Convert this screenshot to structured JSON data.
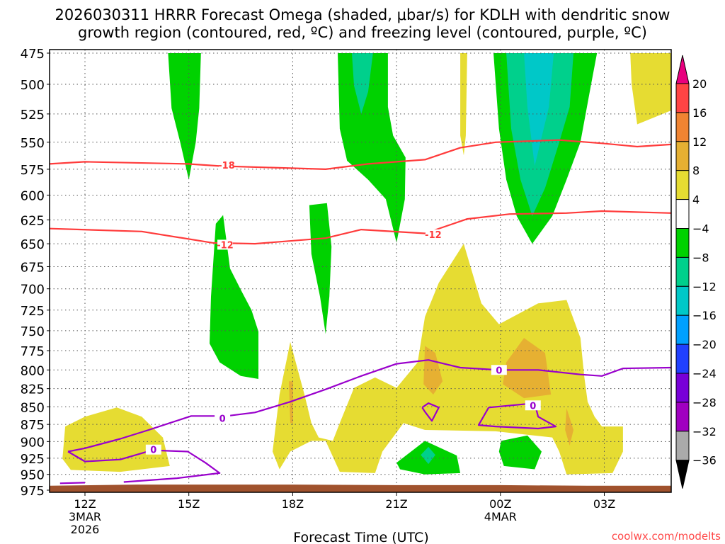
{
  "chart_data": {
    "type": "contour",
    "title_lines": [
      "2026030311 HRRR Forecast Omega (shaded, μbar/s) for KDLH with dendritic snow",
      "growth region (contoured, red, ºC) and freezing level (contoured, purple, ºC)"
    ],
    "xlabel": "Forecast Time (UTC)",
    "credit": "coolwx.com/modelts",
    "x_units": "hours since 12Z 3 Mar 2026",
    "xlim": [
      -1.0,
      17.0
    ],
    "ylim_hPa": [
      475,
      975
    ],
    "y_scale": "log, inverted",
    "grid": "dotted",
    "x_ticks": [
      {
        "h": 0,
        "lines": [
          "12Z",
          "3MAR",
          "2026"
        ]
      },
      {
        "h": 3,
        "lines": [
          "15Z"
        ]
      },
      {
        "h": 6,
        "lines": [
          "18Z"
        ]
      },
      {
        "h": 9,
        "lines": [
          "21Z"
        ]
      },
      {
        "h": 12,
        "lines": [
          "00Z",
          "4MAR"
        ]
      },
      {
        "h": 15,
        "lines": [
          "03Z"
        ]
      }
    ],
    "y_ticks": [
      475,
      500,
      525,
      550,
      575,
      600,
      625,
      650,
      675,
      700,
      725,
      750,
      775,
      800,
      825,
      850,
      875,
      900,
      925,
      950,
      975
    ],
    "colorbar": {
      "labels": [
        "20",
        "16",
        "12",
        "8",
        "4",
        "−4",
        "−8",
        "−12",
        "−16",
        "−20",
        "−24",
        "−28",
        "−32",
        "−36"
      ],
      "colors": [
        "#ff4444",
        "#f08432",
        "#e6b032",
        "#e6dc32",
        "#ffffff",
        "#00d200",
        "#00d08c",
        "#00c8c8",
        "#00a0ff",
        "#2040ff",
        "#7800d8",
        "#a000c0",
        "#aaaaaa"
      ],
      "over_color": "#e8007e",
      "under_color": "#000000"
    },
    "shaded": [
      {
        "level": "-4 to -8",
        "color": "#00d200",
        "points": [
          [
            2.4,
            475
          ],
          [
            3.35,
            475
          ],
          [
            3.3,
            520
          ],
          [
            3.2,
            550
          ],
          [
            3.0,
            585
          ],
          [
            2.75,
            550
          ],
          [
            2.5,
            520
          ]
        ]
      },
      {
        "level": "-4 to -8",
        "color": "#00d200",
        "points": [
          [
            3.78,
            629
          ],
          [
            3.99,
            620
          ],
          [
            4.19,
            677
          ],
          [
            4.5,
            701
          ],
          [
            4.81,
            725
          ],
          [
            5.01,
            751
          ],
          [
            5.01,
            812
          ],
          [
            4.5,
            808
          ],
          [
            3.89,
            790
          ],
          [
            3.6,
            766
          ],
          [
            3.64,
            709
          ]
        ]
      },
      {
        "level": "-4 to -8",
        "color": "#00d200",
        "points": [
          [
            6.48,
            610
          ],
          [
            6.99,
            608
          ],
          [
            7.12,
            653
          ],
          [
            7.06,
            709
          ],
          [
            6.95,
            754
          ],
          [
            6.79,
            709
          ],
          [
            6.54,
            661
          ]
        ]
      },
      {
        "level": "-4 to -8",
        "color": "#00d200",
        "points": [
          [
            7.3,
            475
          ],
          [
            8.75,
            475
          ],
          [
            8.75,
            519
          ],
          [
            8.9,
            544
          ],
          [
            9.26,
            564
          ],
          [
            9.24,
            604
          ],
          [
            9.0,
            649
          ],
          [
            8.69,
            604
          ],
          [
            8.18,
            585
          ],
          [
            7.57,
            567
          ],
          [
            7.36,
            538
          ]
        ]
      },
      {
        "level": "-8 to -12",
        "color": "#00d08c",
        "points": [
          [
            7.71,
            475
          ],
          [
            8.32,
            475
          ],
          [
            8.18,
            506
          ],
          [
            7.98,
            525
          ],
          [
            7.77,
            501
          ]
        ]
      },
      {
        "level": "-4 to -8",
        "color": "#00d200",
        "points": [
          [
            11.8,
            475
          ],
          [
            14.79,
            475
          ],
          [
            14.62,
            500
          ],
          [
            14.31,
            550
          ],
          [
            13.91,
            585
          ],
          [
            13.5,
            621
          ],
          [
            12.92,
            650
          ],
          [
            12.47,
            621
          ],
          [
            12.17,
            585
          ],
          [
            11.96,
            538
          ]
        ]
      },
      {
        "level": "-8 to -12",
        "color": "#00d08c",
        "points": [
          [
            12.17,
            475
          ],
          [
            14.11,
            475
          ],
          [
            14.0,
            519
          ],
          [
            13.7,
            550
          ],
          [
            13.29,
            593
          ],
          [
            12.92,
            621
          ],
          [
            12.58,
            585
          ],
          [
            12.31,
            538
          ]
        ]
      },
      {
        "level": "-12 to -16",
        "color": "#00c8c8",
        "points": [
          [
            12.68,
            475
          ],
          [
            13.54,
            475
          ],
          [
            13.4,
            519
          ],
          [
            12.99,
            572
          ],
          [
            12.78,
            519
          ]
        ]
      },
      {
        "level": "-4 to -8",
        "color": "#00d200",
        "points": [
          [
            9.0,
            932
          ],
          [
            9.82,
            899
          ],
          [
            10.74,
            921
          ],
          [
            10.84,
            948
          ],
          [
            9.82,
            950
          ],
          [
            9.1,
            942
          ]
        ]
      },
      {
        "level": "-8 to -12",
        "color": "#00d08c",
        "points": [
          [
            9.7,
            920
          ],
          [
            9.92,
            908
          ],
          [
            10.12,
            920
          ],
          [
            9.92,
            934
          ]
        ]
      },
      {
        "level": "-4 to -8",
        "color": "#00d200",
        "points": [
          [
            12.02,
            899
          ],
          [
            12.78,
            891
          ],
          [
            13.19,
            915
          ],
          [
            12.99,
            942
          ],
          [
            12.1,
            937
          ],
          [
            11.96,
            915
          ]
        ]
      },
      {
        "level": "4 to 8",
        "color": "#e6dc32",
        "points": [
          [
            -0.65,
            926
          ],
          [
            -0.57,
            878
          ],
          [
            0.0,
            864
          ],
          [
            0.92,
            851
          ],
          [
            1.64,
            864
          ],
          [
            2.25,
            894
          ],
          [
            2.45,
            937
          ],
          [
            1.02,
            946
          ],
          [
            -0.41,
            943
          ]
        ]
      },
      {
        "level": "4 to 8",
        "color": "#e6dc32",
        "points": [
          [
            15.75,
            475
          ],
          [
            16.93,
            475
          ],
          [
            16.93,
            522
          ],
          [
            15.95,
            534
          ],
          [
            15.79,
            500
          ]
        ]
      },
      {
        "level": "4 to 8",
        "color": "#e6dc32",
        "points": [
          [
            10.84,
            475
          ],
          [
            11.04,
            475
          ],
          [
            11.0,
            544
          ],
          [
            10.94,
            562
          ],
          [
            10.84,
            544
          ]
        ]
      },
      {
        "level": "4 to 8",
        "color": "#e6dc32",
        "points": [
          [
            5.42,
            915
          ],
          [
            5.62,
            833
          ],
          [
            5.93,
            764
          ],
          [
            6.34,
            833
          ],
          [
            6.54,
            873
          ],
          [
            6.75,
            894
          ],
          [
            7.16,
            899
          ],
          [
            7.36,
            873
          ],
          [
            7.77,
            824
          ],
          [
            8.38,
            810
          ],
          [
            9.0,
            824
          ],
          [
            9.61,
            790
          ],
          [
            9.82,
            733
          ],
          [
            10.22,
            693
          ],
          [
            10.94,
            650
          ],
          [
            11.45,
            717
          ],
          [
            11.96,
            742
          ],
          [
            13.09,
            717
          ],
          [
            13.91,
            713
          ],
          [
            14.31,
            759
          ],
          [
            14.42,
            808
          ],
          [
            14.52,
            843
          ],
          [
            14.72,
            864
          ],
          [
            14.93,
            878
          ],
          [
            15.54,
            878
          ],
          [
            15.54,
            915
          ],
          [
            15.24,
            948
          ],
          [
            13.91,
            950
          ],
          [
            13.7,
            915
          ],
          [
            13.5,
            894
          ],
          [
            11.86,
            885
          ],
          [
            9.82,
            883
          ],
          [
            9.2,
            873
          ],
          [
            8.59,
            915
          ],
          [
            8.38,
            948
          ],
          [
            7.36,
            946
          ],
          [
            6.95,
            899
          ],
          [
            6.54,
            899
          ],
          [
            5.93,
            915
          ],
          [
            5.62,
            942
          ]
        ]
      },
      {
        "level": "8 to 12",
        "color": "#e6b032",
        "points": [
          [
            9.82,
            769
          ],
          [
            10.12,
            778
          ],
          [
            10.33,
            815
          ],
          [
            10.06,
            833
          ],
          [
            9.78,
            819
          ]
        ]
      },
      {
        "level": "8 to 12",
        "color": "#e6b032",
        "points": [
          [
            12.17,
            790
          ],
          [
            12.68,
            759
          ],
          [
            13.29,
            778
          ],
          [
            13.46,
            833
          ],
          [
            12.68,
            838
          ],
          [
            12.07,
            819
          ]
        ]
      },
      {
        "level": "8 to 12",
        "color": "#e6b032",
        "points": [
          [
            5.89,
            815
          ],
          [
            6.01,
            815
          ],
          [
            6.01,
            873
          ],
          [
            5.93,
            873
          ]
        ]
      },
      {
        "level": "8 to 12",
        "color": "#e6b032",
        "points": [
          [
            13.91,
            852
          ],
          [
            14.11,
            883
          ],
          [
            14.0,
            906
          ],
          [
            13.87,
            883
          ]
        ]
      }
    ],
    "red_contours": [
      {
        "value": "-18",
        "points": [
          [
            -1.02,
            570
          ],
          [
            0,
            568
          ],
          [
            2.97,
            570
          ],
          [
            3.89,
            572
          ],
          [
            6.95,
            575
          ],
          [
            8.18,
            570
          ],
          [
            9.82,
            566
          ],
          [
            10.84,
            555
          ],
          [
            11.86,
            550
          ],
          [
            13.7,
            548
          ],
          [
            14.93,
            551
          ],
          [
            15.95,
            554
          ],
          [
            16.93,
            552
          ]
        ],
        "labels": [
          [
            4.09,
            571
          ]
        ]
      },
      {
        "value": "-12",
        "points": [
          [
            -1.02,
            634
          ],
          [
            1.64,
            637
          ],
          [
            3.68,
            649
          ],
          [
            4.91,
            650
          ],
          [
            6.95,
            644
          ],
          [
            7.98,
            635
          ],
          [
            9.82,
            639
          ],
          [
            11.04,
            624
          ],
          [
            12.27,
            619
          ],
          [
            13.91,
            618
          ],
          [
            14.93,
            616
          ],
          [
            16.93,
            618
          ]
        ],
        "labels": [
          [
            4.05,
            651
          ],
          [
            10.06,
            640
          ]
        ]
      }
    ],
    "purple_contours": [
      {
        "value": "0",
        "points": [
          [
            -0.49,
            915
          ],
          [
            0,
            910
          ],
          [
            1.02,
            896
          ],
          [
            1.84,
            883
          ],
          [
            2.45,
            873
          ],
          [
            3.07,
            863
          ],
          [
            4.09,
            863
          ],
          [
            4.91,
            858
          ],
          [
            5.93,
            843
          ],
          [
            6.95,
            826
          ],
          [
            7.98,
            808
          ],
          [
            9.0,
            792
          ],
          [
            9.92,
            787
          ],
          [
            10.84,
            797
          ],
          [
            11.96,
            800
          ],
          [
            13.09,
            800
          ],
          [
            14.31,
            806
          ],
          [
            14.93,
            808
          ],
          [
            15.54,
            798
          ],
          [
            16.93,
            797
          ]
        ],
        "labels": [
          [
            3.97,
            866
          ],
          [
            11.96,
            800
          ]
        ]
      },
      {
        "value": "0",
        "points": [
          [
            -0.49,
            915
          ],
          [
            0,
            930
          ],
          [
            1.02,
            927
          ],
          [
            1.94,
            913
          ],
          [
            2.97,
            915
          ],
          [
            3.48,
            932
          ],
          [
            3.89,
            948
          ],
          [
            2.66,
            956
          ],
          [
            1.12,
            962
          ]
        ],
        "labels": [
          [
            1.98,
            912
          ]
        ]
      },
      {
        "value": "0",
        "points": [
          [
            -0.72,
            964
          ],
          [
            0,
            963
          ]
        ],
        "labels": []
      },
      {
        "value": "0",
        "points": [
          [
            9.74,
            851
          ],
          [
            9.92,
            845
          ],
          [
            10.22,
            851
          ],
          [
            10.02,
            870
          ],
          [
            9.82,
            857
          ],
          [
            9.74,
            851
          ]
        ],
        "labels": []
      },
      {
        "value": "0",
        "points": [
          [
            11.66,
            851
          ],
          [
            12.99,
            845
          ],
          [
            13.09,
            864
          ],
          [
            13.6,
            878
          ],
          [
            13.09,
            881
          ],
          [
            11.86,
            878
          ],
          [
            11.37,
            876
          ],
          [
            11.66,
            851
          ]
        ],
        "labels": [
          [
            12.94,
            848
          ]
        ]
      }
    ],
    "surface_pressure": [
      [
        -1.02,
        968
      ],
      [
        1.5,
        966
      ],
      [
        4,
        966
      ],
      [
        6,
        966
      ],
      [
        9,
        967
      ],
      [
        12,
        967
      ],
      [
        14.5,
        968
      ],
      [
        16.93,
        968
      ]
    ],
    "terrain_color": "#a0522d"
  }
}
